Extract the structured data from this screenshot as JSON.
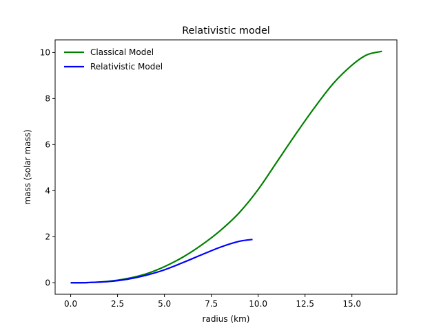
{
  "chart_data": {
    "type": "line",
    "title": "Relativistic model",
    "xlabel": "radius (km)",
    "ylabel": "mass (solar mass)",
    "xlim": [
      -0.83,
      17.4
    ],
    "ylim": [
      -0.5,
      10.55
    ],
    "xticks": [
      0.0,
      2.5,
      5.0,
      7.5,
      10.0,
      12.5,
      15.0
    ],
    "xtick_labels": [
      "0.0",
      "2.5",
      "5.0",
      "7.5",
      "10.0",
      "12.5",
      "15.0"
    ],
    "yticks": [
      0,
      2,
      4,
      6,
      8,
      10
    ],
    "ytick_labels": [
      "0",
      "2",
      "4",
      "6",
      "8",
      "10"
    ],
    "grid": false,
    "legend_position": "top-left",
    "series": [
      {
        "name": "Classical Model",
        "color": "#008000",
        "x": [
          0.0,
          1.0,
          2.0,
          3.0,
          4.0,
          5.0,
          6.0,
          7.0,
          8.0,
          9.0,
          10.0,
          11.0,
          12.0,
          13.0,
          14.0,
          15.0,
          15.8,
          16.6
        ],
        "y": [
          0.0,
          0.01,
          0.06,
          0.18,
          0.38,
          0.7,
          1.12,
          1.65,
          2.28,
          3.05,
          4.05,
          5.25,
          6.45,
          7.6,
          8.65,
          9.45,
          9.9,
          10.05
        ]
      },
      {
        "name": "Relativistic Model",
        "color": "#0000ff",
        "x": [
          0.0,
          1.0,
          2.0,
          3.0,
          4.0,
          5.0,
          6.0,
          7.0,
          8.0,
          9.0,
          9.7
        ],
        "y": [
          0.0,
          0.01,
          0.05,
          0.15,
          0.32,
          0.56,
          0.88,
          1.22,
          1.55,
          1.8,
          1.88
        ]
      }
    ]
  }
}
